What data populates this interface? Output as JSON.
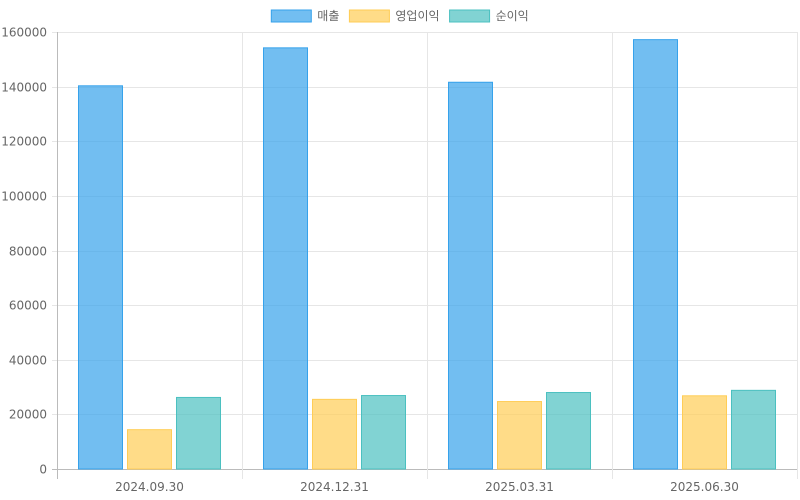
{
  "chart_data": {
    "type": "bar",
    "categories": [
      "2024.09.30",
      "2024.12.31",
      "2025.03.31",
      "2025.06.30"
    ],
    "series": [
      {
        "name": "매출",
        "values": [
          140300,
          154200,
          141600,
          157200
        ],
        "color": "#36a2eb"
      },
      {
        "name": "영업이익",
        "values": [
          14400,
          25500,
          24700,
          26800
        ],
        "color": "#ffcd56"
      },
      {
        "name": "순이익",
        "values": [
          26200,
          26900,
          28000,
          28800
        ],
        "color": "#4bc0c0"
      }
    ],
    "ylim": [
      0,
      160000
    ],
    "yticks": [
      0,
      20000,
      40000,
      60000,
      80000,
      100000,
      120000,
      140000,
      160000
    ],
    "grid": true,
    "legend_position": "top-center",
    "title": "",
    "xlabel": "",
    "ylabel": ""
  }
}
